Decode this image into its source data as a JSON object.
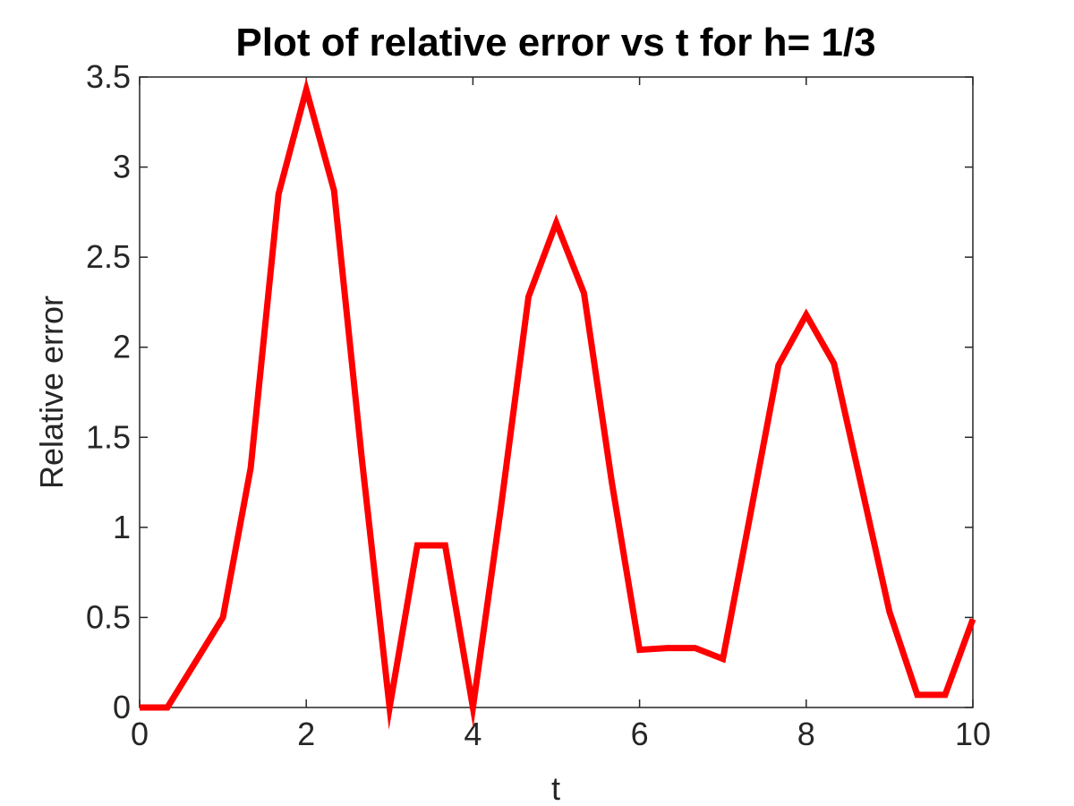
{
  "chart_data": {
    "type": "line",
    "title": "Plot of relative error vs t for h= 1/3",
    "xlabel": "t",
    "ylabel": "Relative error",
    "xlim": [
      0,
      10
    ],
    "ylim": [
      0,
      3.5
    ],
    "xticks": [
      0,
      2,
      4,
      6,
      8,
      10
    ],
    "yticks": [
      0,
      0.5,
      1,
      1.5,
      2,
      2.5,
      3,
      3.5
    ],
    "xtick_labels": [
      "0",
      "2",
      "4",
      "6",
      "8",
      "10"
    ],
    "ytick_labels": [
      "0",
      "0.5",
      "1",
      "1.5",
      "2",
      "2.5",
      "3",
      "3.5"
    ],
    "grid": false,
    "series": [
      {
        "color": "#ff0000",
        "x": [
          0,
          0.3333,
          0.6667,
          1,
          1.3333,
          1.6667,
          2,
          2.3333,
          2.6667,
          3,
          3.3333,
          3.6667,
          4,
          4.3333,
          4.6667,
          5,
          5.3333,
          5.6667,
          6,
          6.3333,
          6.6667,
          7,
          7.3333,
          7.6667,
          8,
          8.3333,
          8.6667,
          9,
          9.3333,
          9.6667,
          10
        ],
        "y": [
          0,
          0,
          0.25,
          0.5,
          1.33,
          2.85,
          3.43,
          2.87,
          1.38,
          0,
          0.9,
          0.9,
          0,
          1.1,
          2.28,
          2.69,
          2.3,
          1.25,
          0.32,
          0.33,
          0.33,
          0.27,
          1.08,
          1.9,
          2.18,
          1.91,
          1.22,
          0.53,
          0.07,
          0.07,
          0.49
        ]
      }
    ]
  }
}
